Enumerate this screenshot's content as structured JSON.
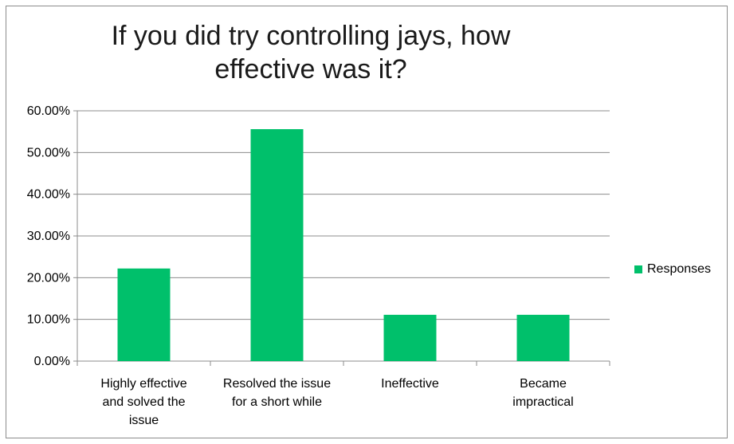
{
  "chart_data": {
    "type": "bar",
    "title": "If you did try controlling jays, how effective was it?",
    "title_lines": [
      "If you did try controlling jays, how",
      "effective was it?"
    ],
    "categories": [
      [
        "Highly effective",
        "and solved the",
        "issue"
      ],
      [
        "Resolved the issue",
        "for a short while"
      ],
      [
        "Ineffective"
      ],
      [
        "Became",
        "impractical"
      ]
    ],
    "series": [
      {
        "name": "Responses",
        "values": [
          22.2,
          55.6,
          11.1,
          11.1
        ],
        "color": "#00c06b"
      }
    ],
    "yticks": [
      "0.00%",
      "10.00%",
      "20.00%",
      "30.00%",
      "40.00%",
      "50.00%",
      "60.00%"
    ],
    "ylim": [
      0,
      60
    ],
    "grid": true,
    "legend_position": "right"
  }
}
